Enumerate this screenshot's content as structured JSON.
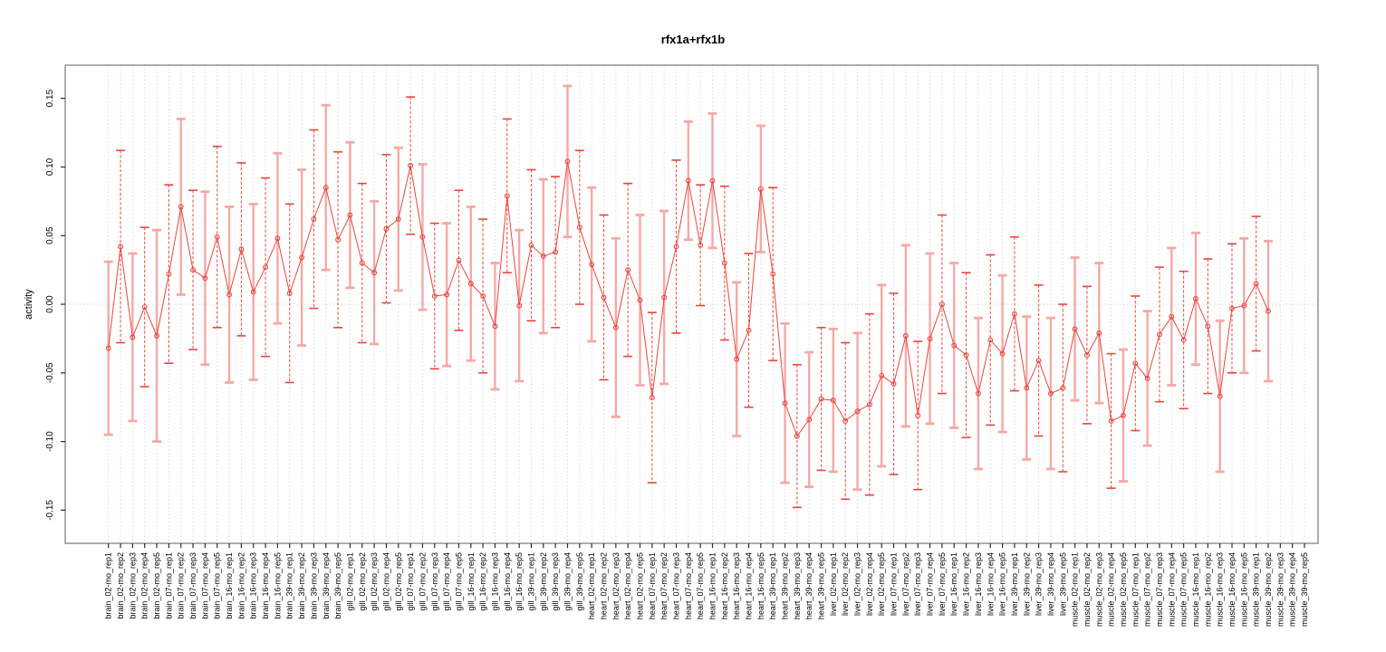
{
  "title": "rfx1a+rfx1b",
  "chart_data": {
    "type": "line",
    "title": "rfx1a+rfx1b",
    "xlabel": "",
    "ylabel": "activity",
    "ylim": [
      -0.174,
      0.174
    ],
    "yticks": [
      -0.15,
      -0.1,
      -0.05,
      0.0,
      0.05,
      0.1,
      0.15
    ],
    "ytick_labels": [
      "-0.15",
      "-0.10",
      "-0.05",
      "0.00",
      "0.05",
      "0.10",
      "0.15"
    ],
    "grid": "vertical dotted gridline at every category; horizontal dotted line at y=0",
    "legend_position": "none",
    "marker": "open-circle",
    "error_bars": true,
    "categories": [
      "brain_02-mo_rep1",
      "brain_02-mo_rep2",
      "brain_02-mo_rep3",
      "brain_02-mo_rep4",
      "brain_02-mo_rep5",
      "brain_07-mo_rep1",
      "brain_07-mo_rep2",
      "brain_07-mo_rep3",
      "brain_07-mo_rep4",
      "brain_07-mo_rep5",
      "brain_16-mo_rep1",
      "brain_16-mo_rep2",
      "brain_16-mo_rep3",
      "brain_16-mo_rep4",
      "brain_16-mo_rep5",
      "brain_39-mo_rep1",
      "brain_39-mo_rep2",
      "brain_39-mo_rep3",
      "brain_39-mo_rep4",
      "brain_39-mo_rep5",
      "gill_02-mo_rep1",
      "gill_02-mo_rep2",
      "gill_02-mo_rep3",
      "gill_02-mo_rep4",
      "gill_02-mo_rep5",
      "gill_07-mo_rep1",
      "gill_07-mo_rep2",
      "gill_07-mo_rep3",
      "gill_07-mo_rep4",
      "gill_07-mo_rep5",
      "gill_16-mo_rep1",
      "gill_16-mo_rep2",
      "gill_16-mo_rep3",
      "gill_16-mo_rep4",
      "gill_16-mo_rep5",
      "gill_39-mo_rep1",
      "gill_39-mo_rep2",
      "gill_39-mo_rep3",
      "gill_39-mo_rep4",
      "gill_39-mo_rep5",
      "heart_02-mo_rep1",
      "heart_02-mo_rep2",
      "heart_02-mo_rep3",
      "heart_02-mo_rep4",
      "heart_02-mo_rep5",
      "heart_07-mo_rep1",
      "heart_07-mo_rep2",
      "heart_07-mo_rep3",
      "heart_07-mo_rep4",
      "heart_07-mo_rep5",
      "heart_16-mo_rep1",
      "heart_16-mo_rep2",
      "heart_16-mo_rep3",
      "heart_16-mo_rep4",
      "heart_16-mo_rep5",
      "heart_39-mo_rep1",
      "heart_39-mo_rep2",
      "heart_39-mo_rep3",
      "heart_39-mo_rep4",
      "heart_39-mo_rep5",
      "liver_02-mo_rep1",
      "liver_02-mo_rep2",
      "liver_02-mo_rep3",
      "liver_02-mo_rep4",
      "liver_02-mo_rep5",
      "liver_07-mo_rep1",
      "liver_07-mo_rep2",
      "liver_07-mo_rep3",
      "liver_07-mo_rep4",
      "liver_07-mo_rep5",
      "liver_16-mo_rep1",
      "liver_16-mo_rep2",
      "liver_16-mo_rep3",
      "liver_16-mo_rep4",
      "liver_16-mo_rep5",
      "liver_39-mo_rep1",
      "liver_39-mo_rep2",
      "liver_39-mo_rep3",
      "liver_39-mo_rep4",
      "liver_39-mo_rep5",
      "muscle_02-mo_rep1",
      "muscle_02-mo_rep2",
      "muscle_02-mo_rep3",
      "muscle_02-mo_rep4",
      "muscle_02-mo_rep5",
      "muscle_07-mo_rep1",
      "muscle_07-mo_rep2",
      "muscle_07-mo_rep3",
      "muscle_07-mo_rep4",
      "muscle_07-mo_rep5",
      "muscle_16-mo_rep1",
      "muscle_16-mo_rep2",
      "muscle_16-mo_rep3",
      "muscle_16-mo_rep4",
      "muscle_16-mo_rep5",
      "muscle_39-mo_rep1",
      "muscle_39-mo_rep2",
      "muscle_39-mo_rep3",
      "muscle_39-mo_rep4",
      "muscle_39-mo_rep5"
    ],
    "values": [
      -0.032,
      0.042,
      -0.024,
      -0.002,
      -0.023,
      0.022,
      0.071,
      0.025,
      0.019,
      0.049,
      0.007,
      0.04,
      0.009,
      0.027,
      0.048,
      0.008,
      0.034,
      0.062,
      0.085,
      0.047,
      0.065,
      0.03,
      0.023,
      0.055,
      0.062,
      0.101,
      0.049,
      0.006,
      0.007,
      0.032,
      0.015,
      0.006,
      -0.016,
      0.079,
      -0.001,
      0.043,
      0.035,
      0.038,
      0.104,
      0.056,
      0.029,
      0.005,
      -0.017,
      0.025,
      0.003,
      -0.068,
      0.005,
      0.042,
      0.09,
      0.043,
      0.09,
      0.03,
      -0.04,
      -0.019,
      0.084,
      0.022,
      -0.072,
      -0.096,
      -0.084,
      -0.069,
      -0.07,
      -0.085,
      -0.078,
      -0.073,
      -0.052,
      -0.058,
      -0.023,
      -0.081,
      -0.025,
      0.0,
      -0.03,
      -0.037,
      -0.065,
      -0.026,
      -0.036,
      -0.007,
      -0.061,
      -0.041,
      -0.065,
      -0.061,
      -0.018,
      -0.037,
      -0.021,
      -0.085,
      -0.081,
      -0.043,
      -0.054,
      -0.022,
      -0.009,
      -0.026,
      0.004,
      -0.016,
      -0.067,
      -0.003,
      -0.001,
      0.015,
      -0.005,
      null,
      null,
      null
    ],
    "error_half_width": [
      0.063,
      0.07,
      0.061,
      0.058,
      0.077,
      0.065,
      0.064,
      0.058,
      0.063,
      0.066,
      0.064,
      0.063,
      0.064,
      0.065,
      0.062,
      0.065,
      0.064,
      0.065,
      0.06,
      0.064,
      0.053,
      0.058,
      0.052,
      0.054,
      0.052,
      0.05,
      0.053,
      0.053,
      0.052,
      0.051,
      0.056,
      0.056,
      0.046,
      0.056,
      0.055,
      0.055,
      0.056,
      0.055,
      0.055,
      0.056,
      0.056,
      0.06,
      0.065,
      0.063,
      0.062,
      0.062,
      0.063,
      0.063,
      0.043,
      0.044,
      0.049,
      0.056,
      0.056,
      0.056,
      0.046,
      0.063,
      0.058,
      0.052,
      0.049,
      0.052,
      0.052,
      0.057,
      0.057,
      0.066,
      0.066,
      0.066,
      0.066,
      0.054,
      0.062,
      0.065,
      0.06,
      0.06,
      0.055,
      0.062,
      0.057,
      0.056,
      0.052,
      0.055,
      0.055,
      0.061,
      0.052,
      0.05,
      0.051,
      0.049,
      0.048,
      0.049,
      0.049,
      0.049,
      0.05,
      0.05,
      0.048,
      0.049,
      0.055,
      0.047,
      0.049,
      0.049,
      0.051,
      null,
      null,
      null
    ],
    "colors": {
      "series": "#e8453f",
      "error_bar_solid": "#f5a9a5",
      "grid": "#c9c9c9",
      "zero_line": "#bdbdbd",
      "axis": "#2a2a2a",
      "box": "#8a8a8a",
      "text": "#000000"
    }
  }
}
